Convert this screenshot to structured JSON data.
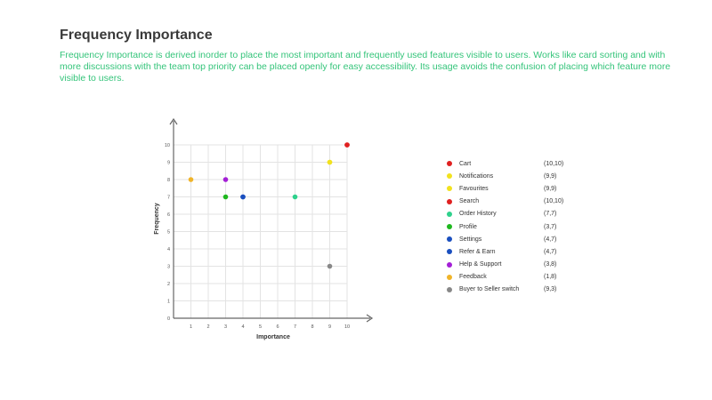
{
  "header": {
    "title": "Frequency Importance",
    "description": "Frequency Importance is derived inorder to place the most important and frequently used features visible to users. Works like card sorting  and with more discussions with the team top priority can be placed openly for easy accessibility. Its usage avoids the confusion of placing which feature more visible to users."
  },
  "chart_data": {
    "type": "scatter",
    "xlabel": "Importance",
    "ylabel": "Frequency",
    "xlim": [
      0,
      10
    ],
    "ylim": [
      0,
      10
    ],
    "xticks": [
      1,
      2,
      3,
      4,
      5,
      6,
      7,
      8,
      9,
      10
    ],
    "yticks": [
      0,
      1,
      2,
      3,
      4,
      5,
      6,
      7,
      8,
      9,
      10
    ],
    "grid": true,
    "legend_position": "right",
    "points": [
      {
        "label": "Cart",
        "coord": "(10,10)",
        "x": 10,
        "y": 10,
        "color": "#e02020"
      },
      {
        "label": "Notifications",
        "coord": "(9,9)",
        "x": 9,
        "y": 9,
        "color": "#f2e21e"
      },
      {
        "label": "Favourites",
        "coord": "(9,9)",
        "x": 9,
        "y": 9,
        "color": "#f2e21e"
      },
      {
        "label": "Search",
        "coord": "(10,10)",
        "x": 10,
        "y": 10,
        "color": "#e02020"
      },
      {
        "label": "Order History",
        "coord": "(7,7)",
        "x": 7,
        "y": 7,
        "color": "#2ed18c"
      },
      {
        "label": "Profile",
        "coord": "(3,7)",
        "x": 3,
        "y": 7,
        "color": "#1fb81f"
      },
      {
        "label": "Settings",
        "coord": "(4,7)",
        "x": 4,
        "y": 7,
        "color": "#1a4fbf"
      },
      {
        "label": "Refer & Earn",
        "coord": "(4,7)",
        "x": 4,
        "y": 7,
        "color": "#1a4fbf"
      },
      {
        "label": "Help & Support",
        "coord": "(3,8)",
        "x": 3,
        "y": 8,
        "color": "#a41fd6"
      },
      {
        "label": "Feedback",
        "coord": "(1,8)",
        "x": 1,
        "y": 8,
        "color": "#f0b429"
      },
      {
        "label": "Buyer to Seller switch",
        "coord": "(9,3)",
        "x": 9,
        "y": 3,
        "color": "#888888"
      }
    ]
  }
}
